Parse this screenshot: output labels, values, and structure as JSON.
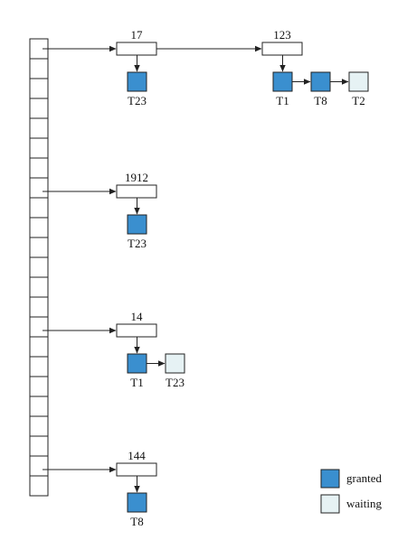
{
  "diagram": {
    "colors": {
      "granted": "#3a8fcf",
      "waiting": "#e6f2f4",
      "stroke": "#222222"
    },
    "hash_table": {
      "slot_count": 23
    },
    "chains": [
      {
        "lock_objects": [
          {
            "id": "17",
            "requests": [
              {
                "label": "T23",
                "status": "granted"
              }
            ]
          },
          {
            "id": "123",
            "requests": [
              {
                "label": "T1",
                "status": "granted"
              },
              {
                "label": "T8",
                "status": "granted"
              },
              {
                "label": "T2",
                "status": "waiting"
              }
            ]
          }
        ]
      },
      {
        "lock_objects": [
          {
            "id": "1912",
            "requests": [
              {
                "label": "T23",
                "status": "granted"
              }
            ]
          }
        ]
      },
      {
        "lock_objects": [
          {
            "id": "14",
            "requests": [
              {
                "label": "T1",
                "status": "granted"
              },
              {
                "label": "T23",
                "status": "waiting"
              }
            ]
          }
        ]
      },
      {
        "lock_objects": [
          {
            "id": "144",
            "requests": [
              {
                "label": "T8",
                "status": "granted"
              }
            ]
          }
        ]
      }
    ],
    "legend": [
      {
        "status": "granted",
        "label": "granted"
      },
      {
        "status": "waiting",
        "label": "waiting"
      }
    ]
  }
}
